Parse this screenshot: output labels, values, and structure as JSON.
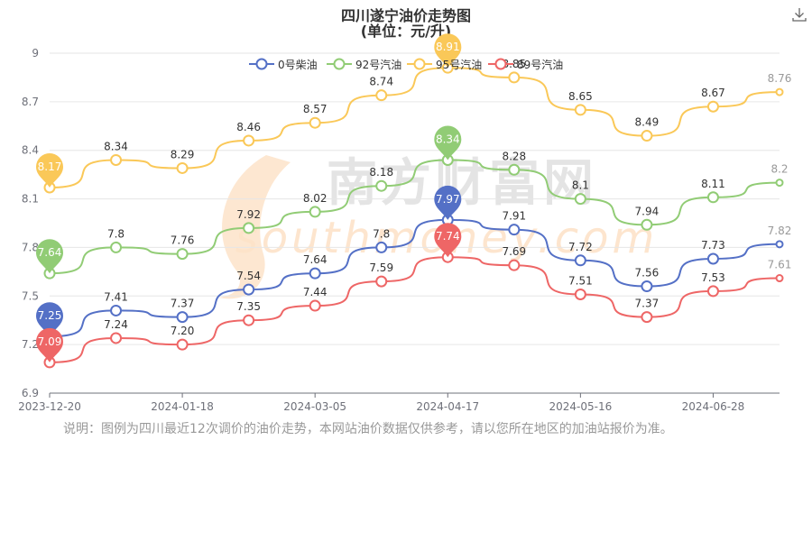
{
  "title": "四川遂宁油价走势图",
  "subtitle": "(单位：元/升)",
  "note": "说明：图例为四川最近12次调价的油价走势，本网站油价数据仅供参考，请以您所在地区的加油站报价为准。",
  "watermark": {
    "cn": "南方财富网",
    "en": "southmoney.com"
  },
  "icons": {
    "download": "download-icon"
  },
  "chart_data": {
    "type": "line",
    "ylim": [
      6.9,
      9.0
    ],
    "y_ticks": [
      "6.9",
      "7.2",
      "7.5",
      "7.8",
      "8.1",
      "8.4",
      "8.7",
      "9"
    ],
    "x_tick_labels": [
      "2023-12-20",
      "2024-01-18",
      "2024-03-05",
      "2024-04-17",
      "2024-05-16",
      "2024-06-28"
    ],
    "x_tick_positions": [
      0,
      2,
      4,
      6,
      8,
      10
    ],
    "n_points": 12,
    "legend_position": "top",
    "series": [
      {
        "name": "0号柴油",
        "color": "#5470c6",
        "values": [
          7.25,
          7.41,
          7.37,
          7.54,
          7.64,
          7.8,
          7.97,
          7.91,
          7.72,
          7.56,
          7.73,
          7.82
        ],
        "labels": [
          "",
          "7.41",
          "7.37",
          "7.54",
          "7.64",
          "7.8",
          "",
          "7.91",
          "7.72",
          "7.56",
          "7.73",
          "7.82"
        ],
        "pin_labels": {
          "min": "7.25",
          "max": "7.97"
        }
      },
      {
        "name": "92号汽油",
        "color": "#91cc75",
        "values": [
          7.64,
          7.8,
          7.76,
          7.92,
          8.02,
          8.18,
          8.34,
          8.28,
          8.1,
          7.94,
          8.11,
          8.2
        ],
        "labels": [
          "",
          "7.8",
          "7.76",
          "7.92",
          "8.02",
          "8.18",
          "",
          "8.28",
          "8.1",
          "7.94",
          "8.11",
          "8.2"
        ],
        "pin_labels": {
          "min": "7.64",
          "max": "8.34"
        }
      },
      {
        "name": "95号汽油",
        "color": "#fac858",
        "values": [
          8.17,
          8.34,
          8.29,
          8.46,
          8.57,
          8.74,
          8.91,
          8.85,
          8.65,
          8.49,
          8.67,
          8.76
        ],
        "labels": [
          "",
          "8.34",
          "8.29",
          "8.46",
          "8.57",
          "8.74",
          "",
          "8.85",
          "8.65",
          "8.49",
          "8.67",
          "8.76"
        ],
        "pin_labels": {
          "min": "8.17",
          "max": "8.91"
        }
      },
      {
        "name": "89号汽油",
        "color": "#ee6666",
        "values": [
          7.09,
          7.24,
          7.2,
          7.35,
          7.44,
          7.59,
          7.74,
          7.69,
          7.51,
          7.37,
          7.53,
          7.61
        ],
        "labels": [
          "",
          "7.24",
          "7.20",
          "7.35",
          "7.44",
          "7.59",
          "",
          "7.69",
          "7.51",
          "7.37",
          "7.53",
          "7.61"
        ],
        "pin_labels": {
          "min": "7.09",
          "max": "7.74"
        }
      }
    ]
  }
}
